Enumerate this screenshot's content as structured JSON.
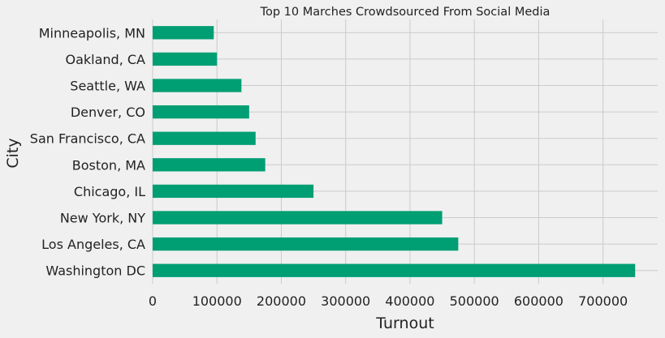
{
  "chart_data": {
    "type": "bar",
    "orientation": "horizontal",
    "title": "Top 10 Marches Crowdsourced From Social Media",
    "xlabel": "Turnout",
    "ylabel": "City",
    "categories": [
      "Washington DC",
      "Los Angeles, CA",
      "New York, NY",
      "Chicago, IL",
      "Boston, MA",
      "San Francisco, CA",
      "Denver, CO",
      "Seattle, WA",
      "Oakland, CA",
      "Minneapolis, MN"
    ],
    "values": [
      750000,
      475000,
      450000,
      250000,
      175000,
      160000,
      150000,
      138000,
      100000,
      95000
    ],
    "xlim": [
      0,
      785000
    ],
    "xticks": [
      0,
      100000,
      200000,
      300000,
      400000,
      500000,
      600000,
      700000
    ],
    "bar_color": "#009e73",
    "grid": true
  }
}
